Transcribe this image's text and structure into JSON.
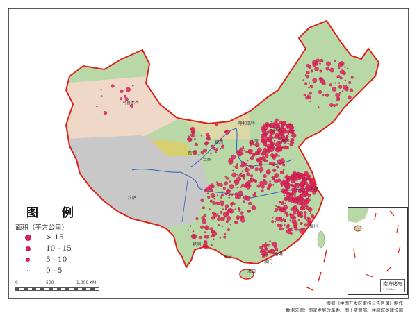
{
  "legend": {
    "title": "图 例",
    "subtitle": "面积（平方公里）",
    "items": [
      {
        "label": "> 15"
      },
      {
        "label": "10 - 15"
      },
      {
        "label": "5 - 10"
      },
      {
        "label": "0 - 5"
      }
    ]
  },
  "scale_bar": {
    "ticks": [
      "0",
      "500",
      "1,000 KM"
    ]
  },
  "inset": {
    "label": "南海诸岛",
    "scale": "0    300km"
  },
  "credits": {
    "line1": "根据《中国开发区审核公告目录》制作",
    "line2": "数据来源：国家发展改革委、国土资源部、住房城乡建设部"
  },
  "cities": [
    "乌鲁木齐",
    "拉萨",
    "西宁",
    "兰州",
    "银川",
    "呼和浩特",
    "太原",
    "北京",
    "天津",
    "上海",
    "福州",
    "昆明",
    "南宁",
    "香港",
    "澳门",
    "海口"
  ],
  "colors": {
    "border": "#e0201a",
    "dot": "#e0245e",
    "lowland": "#b9d8a8",
    "plateau": "#c8c8c8",
    "desert": "#f0d8c8",
    "river": "#3060c0"
  }
}
